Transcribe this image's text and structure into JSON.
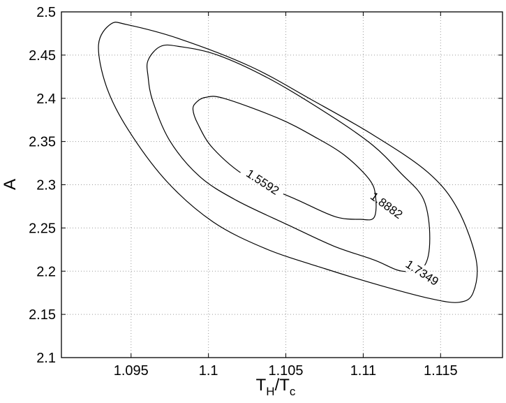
{
  "chart_data": {
    "type": "contour",
    "xlabel_main": "T",
    "xlabel_sub1": "H",
    "xlabel_mid": "/T",
    "xlabel_sub2": "c",
    "ylabel": "A",
    "xlim": [
      1.0905,
      1.119
    ],
    "ylim": [
      2.1,
      2.5
    ],
    "x_ticks": [
      1.095,
      1.1,
      1.105,
      1.11,
      1.115
    ],
    "x_tick_labels": [
      "1.095",
      "1.1",
      "1.105",
      "1.11",
      "1.115"
    ],
    "y_ticks": [
      2.1,
      2.15,
      2.2,
      2.25,
      2.3,
      2.35,
      2.4,
      2.45,
      2.5
    ],
    "y_tick_labels": [
      "2.1",
      "2.15",
      "2.2",
      "2.25",
      "2.3",
      "2.35",
      "2.4",
      "2.45",
      "2.5"
    ],
    "grid": true,
    "contours": [
      {
        "level": "1.5592",
        "label_at": [
          1.1035,
          2.303
        ],
        "label_angle": 33,
        "points": [
          [
            1.0992,
            2.395
          ],
          [
            1.0998,
            2.401
          ],
          [
            1.101,
            2.4
          ],
          [
            1.1045,
            2.377
          ],
          [
            1.1068,
            2.356
          ],
          [
            1.1088,
            2.334
          ],
          [
            1.1104,
            2.306
          ],
          [
            1.1108,
            2.286
          ],
          [
            1.1107,
            2.262
          ],
          [
            1.1098,
            2.26
          ],
          [
            1.1082,
            2.263
          ],
          [
            1.1058,
            2.282
          ],
          [
            1.1025,
            2.309
          ],
          [
            1.1003,
            2.342
          ],
          [
            1.0993,
            2.371
          ],
          [
            1.099,
            2.387
          ],
          [
            1.0992,
            2.395
          ]
        ]
      },
      {
        "level": "1.7349",
        "label_at": [
          1.1138,
          2.198
        ],
        "label_angle": 33,
        "points": [
          [
            1.0961,
            2.444
          ],
          [
            1.0969,
            2.46
          ],
          [
            1.0981,
            2.46
          ],
          [
            1.1006,
            2.45
          ],
          [
            1.104,
            2.422
          ],
          [
            1.1078,
            2.381
          ],
          [
            1.1106,
            2.346
          ],
          [
            1.1124,
            2.314
          ],
          [
            1.1139,
            2.283
          ],
          [
            1.1143,
            2.238
          ],
          [
            1.1139,
            2.205
          ],
          [
            1.1125,
            2.2
          ],
          [
            1.1107,
            2.213
          ],
          [
            1.1081,
            2.229
          ],
          [
            1.1052,
            2.253
          ],
          [
            1.1018,
            2.282
          ],
          [
            1.0994,
            2.31
          ],
          [
            1.0975,
            2.351
          ],
          [
            1.0964,
            2.397
          ],
          [
            1.0961,
            2.425
          ],
          [
            1.0961,
            2.444
          ]
        ]
      },
      {
        "level": "1.8882",
        "label_at": [
          1.1115,
          2.276
        ],
        "label_angle": 36,
        "points": [
          [
            1.0929,
            2.462
          ],
          [
            1.0937,
            2.486
          ],
          [
            1.0948,
            2.485
          ],
          [
            1.0981,
            2.469
          ],
          [
            1.1027,
            2.437
          ],
          [
            1.1066,
            2.399
          ],
          [
            1.1107,
            2.357
          ],
          [
            1.1142,
            2.314
          ],
          [
            1.1161,
            2.272
          ],
          [
            1.1173,
            2.213
          ],
          [
            1.1171,
            2.175
          ],
          [
            1.1162,
            2.164
          ],
          [
            1.1144,
            2.168
          ],
          [
            1.1112,
            2.183
          ],
          [
            1.1075,
            2.203
          ],
          [
            1.1037,
            2.226
          ],
          [
            1.1003,
            2.257
          ],
          [
            1.0973,
            2.304
          ],
          [
            1.0948,
            2.364
          ],
          [
            1.0934,
            2.414
          ],
          [
            1.0929,
            2.462
          ]
        ]
      }
    ]
  }
}
